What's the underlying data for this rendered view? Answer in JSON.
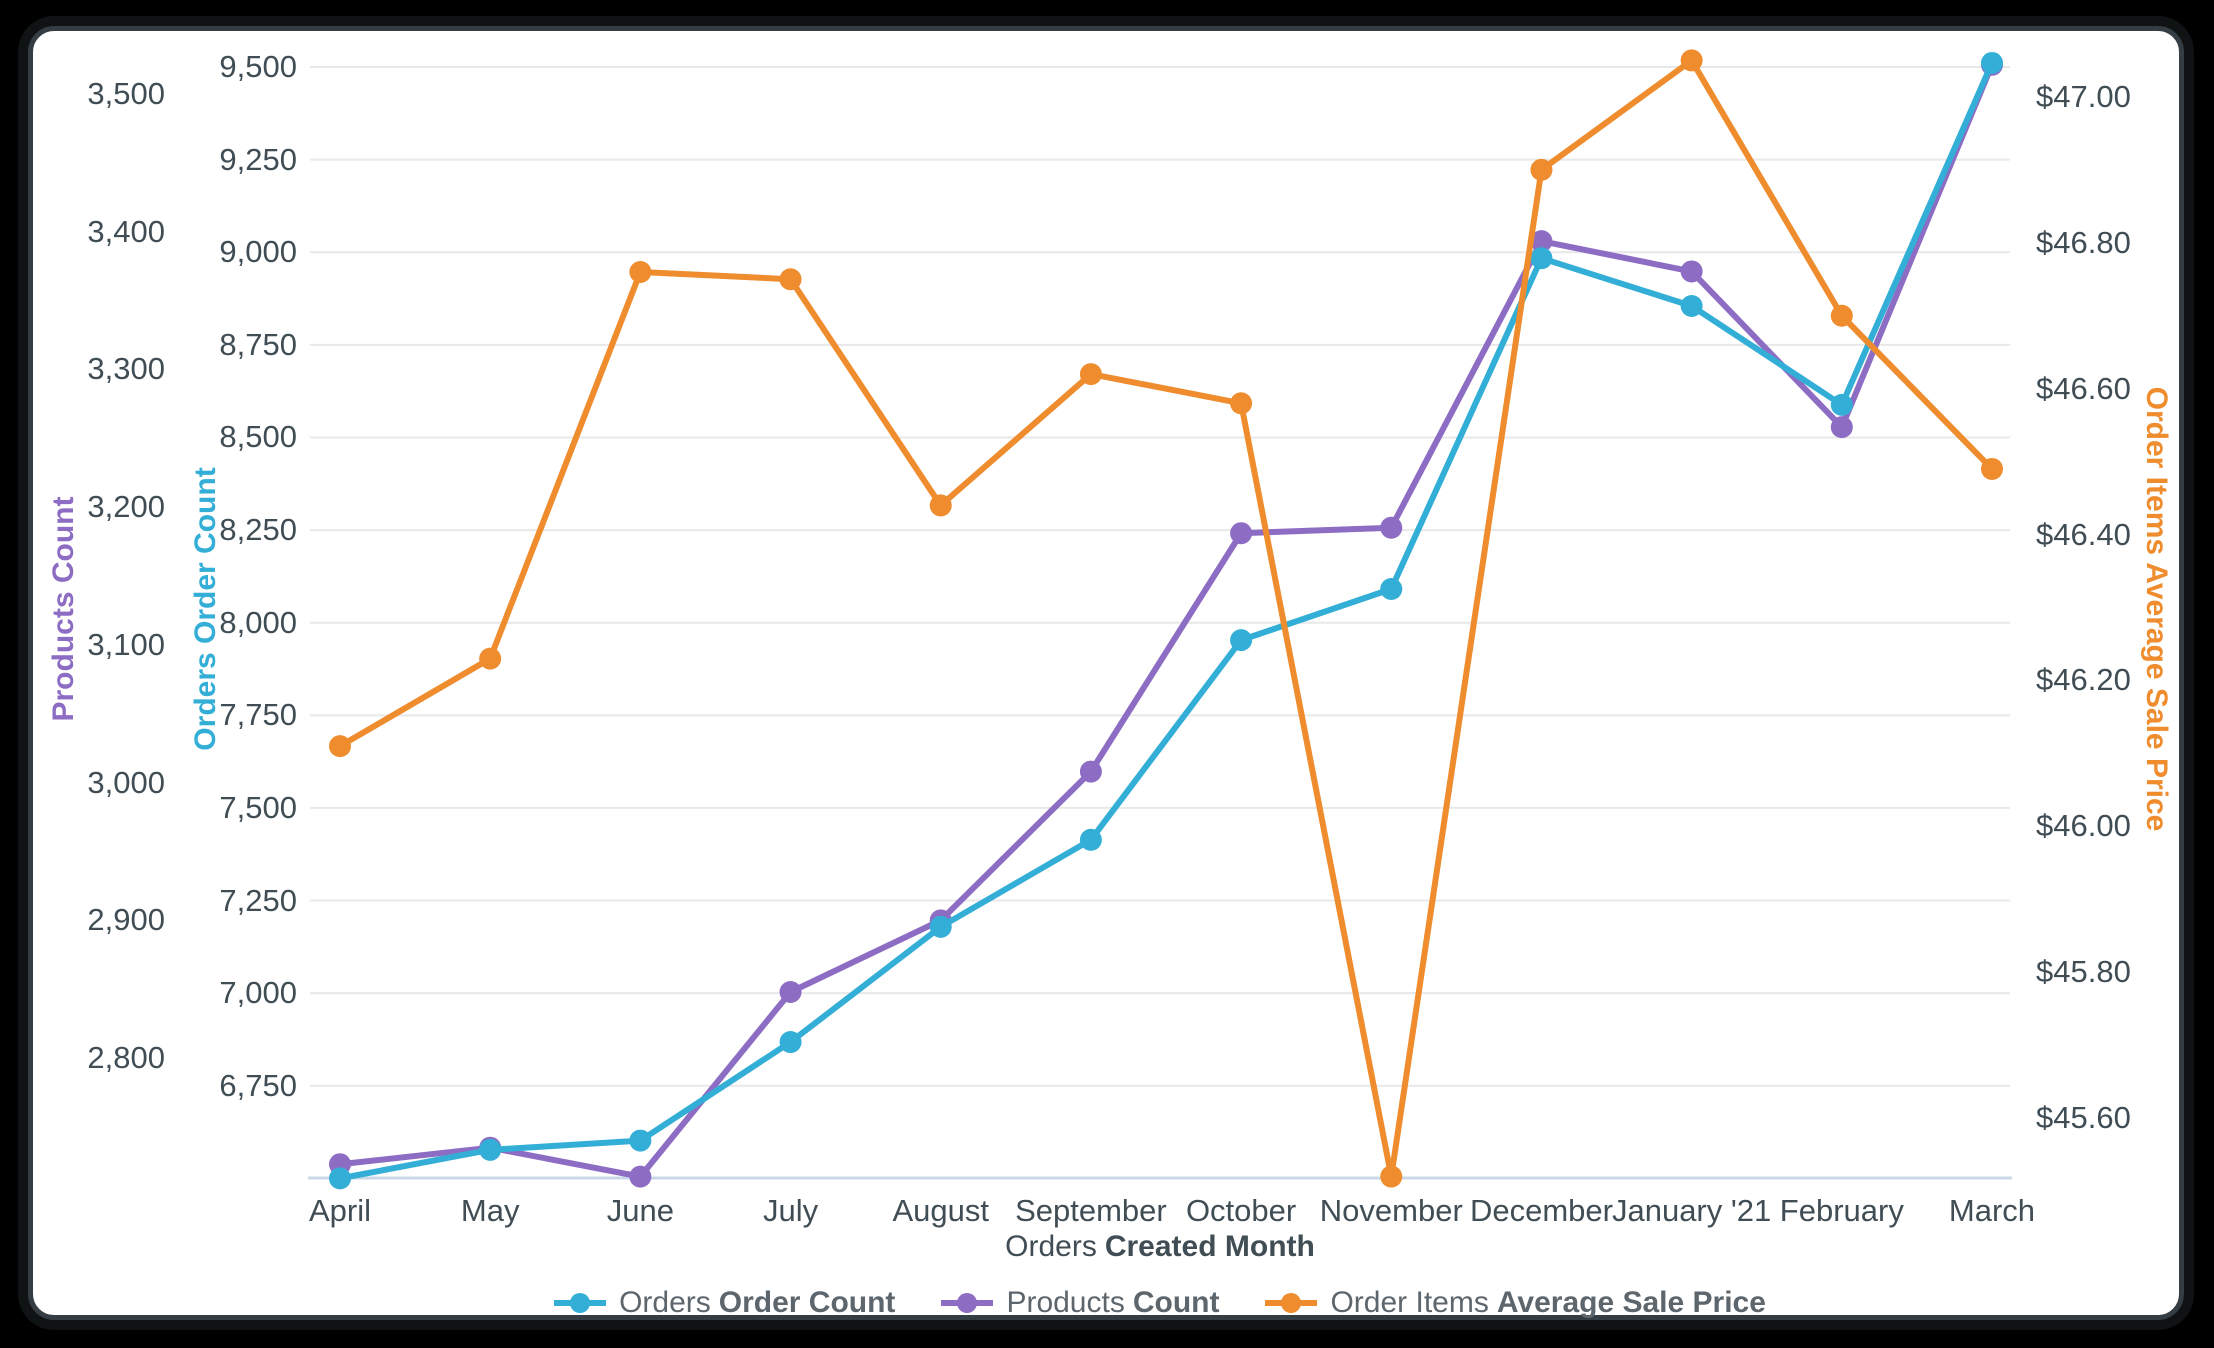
{
  "window": {
    "page_bg": "#000000",
    "card_bg": "#ffffff"
  },
  "colors": {
    "series_orders": "#33aed6",
    "series_products": "#8d6cc3",
    "series_price": "#ee8c2e",
    "gridline": "#e8e8e8",
    "baseline": "#c9d8e8",
    "tick_text": "#414d55",
    "axis_title_text": "#414d55",
    "legend_text": "#5d666d"
  },
  "chart_data": {
    "type": "line",
    "grid": true,
    "legend_position": "bottom",
    "categories": [
      "April",
      "May",
      "June",
      "July",
      "August",
      "September",
      "October",
      "November",
      "December",
      "January '21",
      "February",
      "March"
    ],
    "x_axis": {
      "title_regular": "Orders",
      "title_bold": "Created Month"
    },
    "y_axes": [
      {
        "id": "products",
        "title": "Products Count",
        "side": "left-outer",
        "color": "#8d6cc3",
        "min": 2713,
        "max": 3539,
        "gridlines": false,
        "ticks": [
          {
            "label": "3,500",
            "value": 3500
          },
          {
            "label": "3,400",
            "value": 3400
          },
          {
            "label": "3,300",
            "value": 3300
          },
          {
            "label": "3,200",
            "value": 3200
          },
          {
            "label": "3,100",
            "value": 3100
          },
          {
            "label": "3,000",
            "value": 3000
          },
          {
            "label": "2,900",
            "value": 2900
          },
          {
            "label": "2,800",
            "value": 2800
          }
        ]
      },
      {
        "id": "orders",
        "title": "Orders Order Count",
        "side": "left-inner",
        "color": "#33aed6",
        "min": 6501,
        "max": 9573,
        "gridlines": true,
        "ticks": [
          {
            "label": "9,500",
            "value": 9500
          },
          {
            "label": "9,250",
            "value": 9250
          },
          {
            "label": "9,000",
            "value": 9000
          },
          {
            "label": "8,750",
            "value": 8750
          },
          {
            "label": "8,500",
            "value": 8500
          },
          {
            "label": "8,250",
            "value": 8250
          },
          {
            "label": "8,000",
            "value": 8000
          },
          {
            "label": "7,750",
            "value": 7750
          },
          {
            "label": "7,500",
            "value": 7500
          },
          {
            "label": "7,250",
            "value": 7250
          },
          {
            "label": "7,000",
            "value": 7000
          },
          {
            "label": "6,750",
            "value": 6750
          }
        ]
      },
      {
        "id": "price",
        "title": "Order Items Average Sale Price",
        "side": "right",
        "color": "#ee8c2e",
        "min": 45.518,
        "max": 47.078,
        "gridlines": false,
        "ticks": [
          {
            "label": "$47.00",
            "value": 47.0
          },
          {
            "label": "$46.80",
            "value": 46.8
          },
          {
            "label": "$46.60",
            "value": 46.6
          },
          {
            "label": "$46.40",
            "value": 46.4
          },
          {
            "label": "$46.20",
            "value": 46.2
          },
          {
            "label": "$46.00",
            "value": 46.0
          },
          {
            "label": "$45.80",
            "value": 45.8
          },
          {
            "label": "$45.60",
            "value": 45.6
          }
        ]
      }
    ],
    "series": [
      {
        "name_regular": "Orders",
        "name_bold": "Order Count",
        "axis": "orders",
        "color": "#33aed6",
        "values": [
          6500,
          6577,
          6602,
          6868,
          7179,
          7414,
          7953,
          8091,
          8984,
          8855,
          8588,
          9511
        ]
      },
      {
        "name_regular": "Products",
        "name_bold": "Count",
        "axis": "products",
        "color": "#8d6cc3",
        "values": [
          2723,
          2735,
          2714,
          2848,
          2900,
          3008,
          3181,
          3185,
          3393,
          3371,
          3258,
          3521
        ]
      },
      {
        "name_regular": "Order Items",
        "name_bold": "Average Sale Price",
        "axis": "price",
        "color": "#ee8c2e",
        "values": [
          46.11,
          46.23,
          46.76,
          46.75,
          46.44,
          46.62,
          46.58,
          45.52,
          46.9,
          47.05,
          46.7,
          46.49
        ]
      }
    ]
  }
}
